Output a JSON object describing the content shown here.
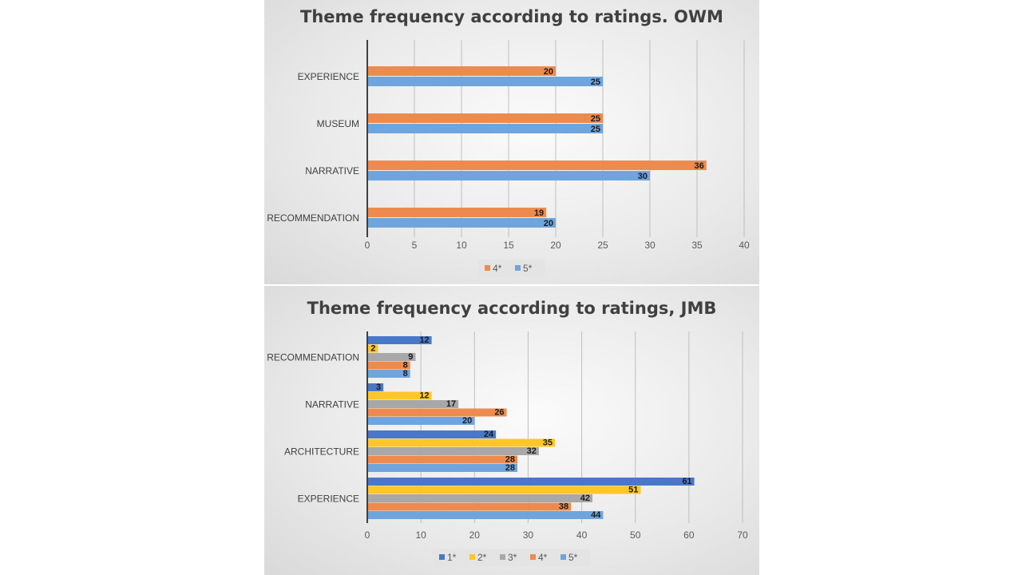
{
  "chart_data": [
    {
      "type": "bar",
      "orientation": "horizontal",
      "title": "Theme frequency according to ratings. OWM",
      "categories": [
        "EXPERIENCE",
        "MUSEUM",
        "NARRATIVE",
        "RECOMMENDATION"
      ],
      "series": [
        {
          "name": "4*",
          "color": "#ED8B4E",
          "values": [
            20,
            25,
            36,
            19
          ]
        },
        {
          "name": "5*",
          "color": "#6FA5DC",
          "values": [
            25,
            25,
            30,
            20
          ]
        }
      ],
      "xlim": [
        0,
        40
      ],
      "xticks": [
        0,
        5,
        10,
        15,
        20,
        25,
        30,
        35,
        40
      ],
      "grid": "vertical",
      "legend": "bottom",
      "data_labels": true
    },
    {
      "type": "bar",
      "orientation": "horizontal",
      "title": "Theme frequency according to ratings, JMB",
      "categories": [
        "RECOMMENDATION",
        "NARRATIVE",
        "ARCHITECTURE",
        "EXPERIENCE"
      ],
      "series": [
        {
          "name": "1*",
          "color": "#4A78C8",
          "values": [
            12,
            3,
            24,
            61
          ]
        },
        {
          "name": "2*",
          "color": "#FFC62A",
          "values": [
            2,
            12,
            35,
            51
          ]
        },
        {
          "name": "3*",
          "color": "#A8A8A8",
          "values": [
            9,
            17,
            32,
            42
          ]
        },
        {
          "name": "4*",
          "color": "#ED8B4E",
          "values": [
            8,
            26,
            28,
            38
          ]
        },
        {
          "name": "5*",
          "color": "#6FA5DC",
          "values": [
            8,
            20,
            28,
            44
          ]
        }
      ],
      "xlim": [
        0,
        70
      ],
      "xticks": [
        0,
        10,
        20,
        30,
        40,
        50,
        60,
        70
      ],
      "grid": "vertical",
      "legend": "bottom",
      "data_labels": true
    }
  ]
}
